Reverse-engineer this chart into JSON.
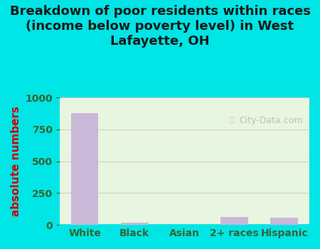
{
  "categories": [
    "White",
    "Black",
    "Asian",
    "2+ races",
    "Hispanic"
  ],
  "values": [
    880,
    20,
    0,
    65,
    55
  ],
  "bar_color": "#c9b8d8",
  "title": "Breakdown of poor residents within races\n(income below poverty level) in West\nLafayette, OH",
  "ylabel": "absolute numbers",
  "ylim": [
    0,
    1000
  ],
  "yticks": [
    0,
    250,
    500,
    750,
    1000
  ],
  "background_outer": "#00e5e5",
  "background_plot_top": "#e8f5e0",
  "background_plot_bottom": "#f0ede0",
  "grid_color": "#c8d8b8",
  "title_color": "#1a1a1a",
  "title_fontsize": 13,
  "ylabel_color": "#cc0000",
  "ylabel_fontsize": 11,
  "tick_color": "#336633",
  "watermark": "City-Data.com"
}
